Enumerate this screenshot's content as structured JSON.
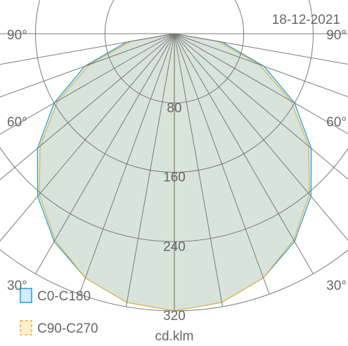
{
  "chart_data": {
    "type": "polar",
    "title": "",
    "date": "18-12-2021",
    "unit_label": "cd.klm",
    "radial_ticks": [
      80,
      160,
      240,
      320
    ],
    "radial_max": 320,
    "angle_ticks": [
      30,
      60,
      90
    ],
    "angle_tick_labels": [
      "30°",
      "60°",
      "90°"
    ],
    "grid": true,
    "legend_position": "bottom-left",
    "series": [
      {
        "name": "C0-C180",
        "color": "#1e9bd7",
        "fill": "#d7ebf8",
        "angles": [
          0,
          10,
          20,
          30,
          40,
          50,
          60,
          70,
          80,
          90
        ],
        "values": [
          320,
          315,
          300,
          277,
          245,
          206,
          160,
          110,
          56,
          0
        ]
      },
      {
        "name": "C90-C270",
        "color": "#e3b53c",
        "fill": "#d8dfcf",
        "angles": [
          0,
          10,
          20,
          30,
          40,
          50,
          60,
          70,
          80,
          90
        ],
        "values": [
          320,
          315,
          300,
          275,
          242,
          202,
          155,
          104,
          51,
          0
        ]
      }
    ]
  }
}
